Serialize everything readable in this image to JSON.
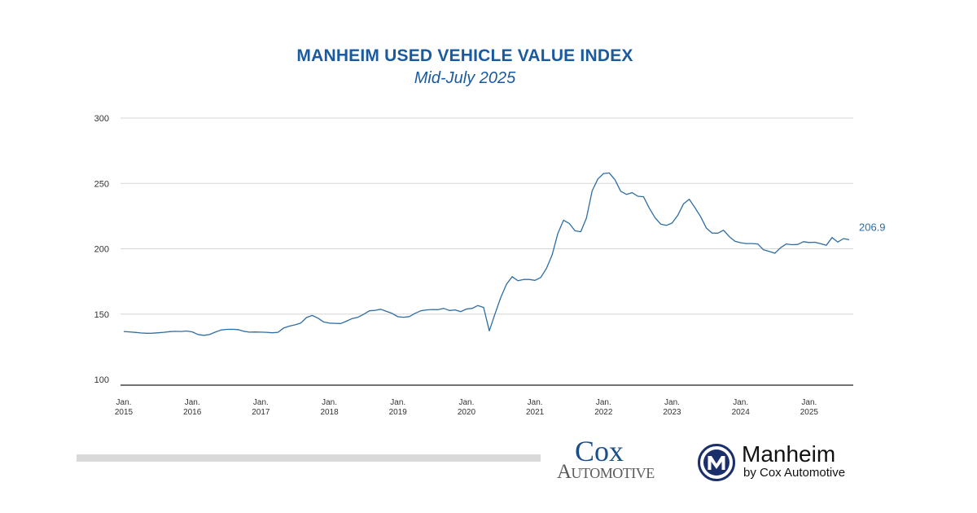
{
  "chart_data": {
    "type": "line",
    "title": "MANHEIM USED VEHICLE VALUE INDEX",
    "subtitle": "Mid-July 2025",
    "xlabel": "",
    "ylabel": "",
    "ylim": [
      100,
      300
    ],
    "yticks": [
      100,
      150,
      200,
      250,
      300
    ],
    "grid": true,
    "x_start": "2015-01",
    "x_step": "month",
    "xtick_labels": [
      [
        "Jan.",
        "2015"
      ],
      [
        "Jan.",
        "2016"
      ],
      [
        "Jan.",
        "2017"
      ],
      [
        "Jan.",
        "2018"
      ],
      [
        "Jan.",
        "2019"
      ],
      [
        "Jan.",
        "2020"
      ],
      [
        "Jan.",
        "2021"
      ],
      [
        "Jan.",
        "2022"
      ],
      [
        "Jan.",
        "2023"
      ],
      [
        "Jan.",
        "2024"
      ],
      [
        "Jan.",
        "2025"
      ]
    ],
    "line_color": "#2e6da4",
    "series": [
      {
        "name": "Manheim Used Vehicle Value Index",
        "values": [
          136.7,
          136.4,
          136.0,
          135.6,
          135.3,
          135.4,
          135.7,
          136.1,
          136.6,
          136.8,
          136.7,
          137.1,
          136.4,
          134.4,
          133.8,
          134.3,
          136.2,
          137.8,
          138.3,
          138.4,
          138.1,
          136.9,
          136.2,
          136.3,
          136.2,
          136.1,
          135.7,
          136.1,
          139.4,
          140.8,
          141.8,
          143.2,
          147.4,
          149.0,
          146.9,
          144.0,
          143.1,
          142.9,
          142.8,
          144.6,
          146.6,
          147.6,
          149.9,
          152.5,
          152.9,
          153.7,
          152.1,
          150.5,
          148.0,
          147.6,
          148.1,
          150.6,
          152.5,
          153.2,
          153.5,
          153.4,
          154.4,
          152.8,
          153.2,
          151.9,
          153.9,
          154.4,
          156.6,
          155.1,
          137.2,
          150.2,
          162.6,
          172.9,
          178.6,
          175.6,
          176.5,
          176.5,
          175.8,
          178.0,
          185.0,
          195.4,
          211.8,
          221.9,
          219.4,
          213.8,
          213.0,
          223.5,
          244.3,
          253.4,
          257.6,
          258.0,
          252.8,
          244.0,
          241.6,
          242.9,
          240.2,
          239.8,
          231.2,
          223.8,
          218.9,
          217.9,
          219.7,
          225.6,
          234.3,
          237.9,
          231.4,
          224.5,
          215.8,
          212.0,
          211.9,
          214.2,
          209.3,
          205.8,
          204.6,
          204.0,
          204.0,
          203.7,
          199.2,
          198.0,
          196.6,
          200.8,
          203.7,
          203.1,
          203.3,
          205.4,
          204.8,
          205.0,
          203.9,
          202.7,
          208.6,
          205.1,
          207.8,
          206.9
        ]
      }
    ],
    "end_label": "206.9"
  },
  "branding": {
    "cox_line1": "Cox",
    "cox_line2": "Automotive",
    "manheim_name": "Manheim",
    "manheim_sub": "by Cox Automotive"
  },
  "colors": {
    "title": "#1a5a9e",
    "cox_blue": "#1a4f8a",
    "manheim_navy": "#1b2f6b"
  }
}
